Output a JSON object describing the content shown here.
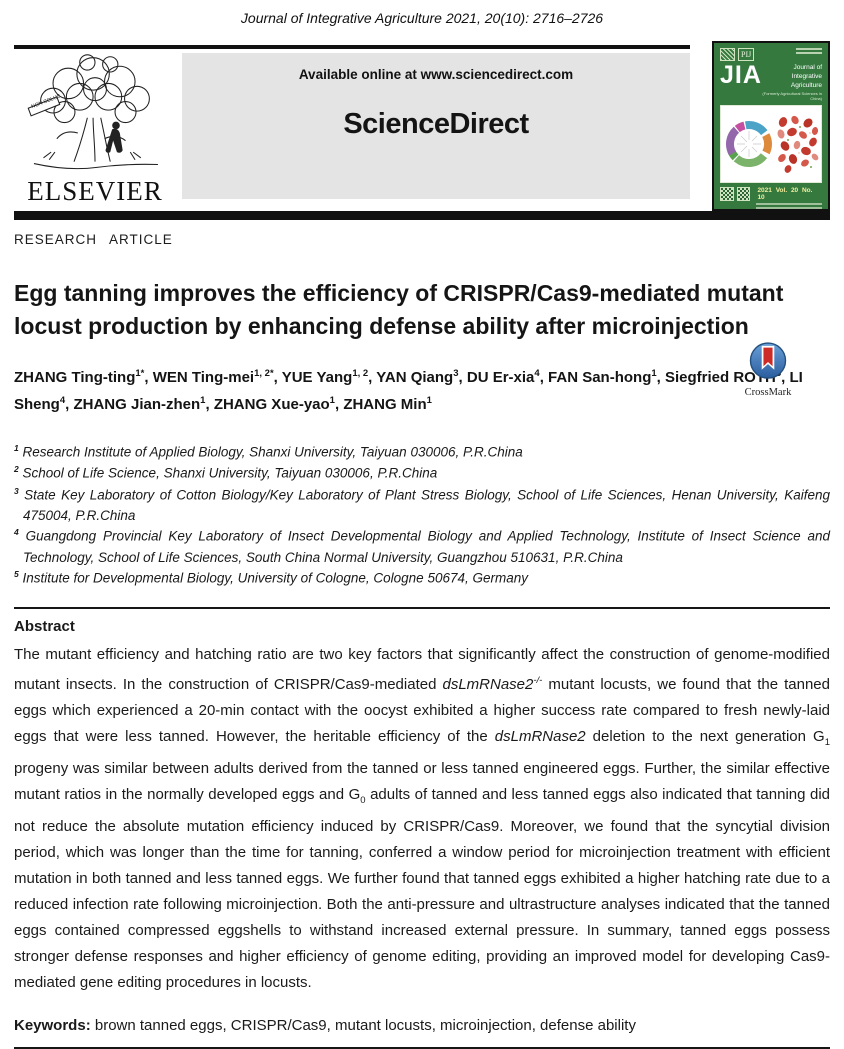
{
  "citation": "Journal of Integrative Agriculture  2021, 20(10): 2716–2726",
  "banner": {
    "available_online": "Available online at www.sciencedirect.com",
    "sciencedirect": "ScienceDirect",
    "elsevier": "ELSEVIER",
    "motto": "NON SOLUS"
  },
  "cover": {
    "abbrev": "JIA",
    "emblem": "PIJ",
    "name1": "Journal of",
    "name2": "Integrative Agriculture",
    "subtitle": "(Formerly Agricultural Sciences in China)",
    "issue": "2021   Vol. 20   No. 10",
    "bg_color": "#35793f"
  },
  "article": {
    "category": "RESEARCH ARTICLE",
    "title": "Egg tanning improves the efficiency of CRISPR/Cas9-mediated mutant locust production by enhancing defense ability after microinjection"
  },
  "crossmark": {
    "label": "CrossMark"
  },
  "authors": {
    "list": [
      {
        "name": "ZHANG Ting-ting",
        "sup": "1*"
      },
      {
        "name": "WEN Ting-mei",
        "sup": "1, 2*"
      },
      {
        "name": "YUE Yang",
        "sup": "1, 2"
      },
      {
        "name": "YAN Qiang",
        "sup": "3"
      },
      {
        "name": "DU Er-xia",
        "sup": "4"
      },
      {
        "name": "FAN San-hong",
        "sup": "1"
      },
      {
        "name": "Siegfried ROTH",
        "sup": "5"
      },
      {
        "name": "LI Sheng",
        "sup": "4"
      },
      {
        "name": "ZHANG Jian-zhen",
        "sup": "1"
      },
      {
        "name": "ZHANG Xue-yao",
        "sup": "1"
      },
      {
        "name": "ZHANG Min",
        "sup": "1"
      }
    ]
  },
  "affiliations": [
    {
      "sup": "1",
      "text": "Research Institute of Applied Biology, Shanxi University, Taiyuan 030006, P.R.China"
    },
    {
      "sup": "2",
      "text": "School of Life Science, Shanxi University, Taiyuan 030006, P.R.China"
    },
    {
      "sup": "3",
      "text": "State Key Laboratory of Cotton Biology/Key Laboratory of Plant Stress Biology, School of Life Sciences, Henan University, Kaifeng 475004, P.R.China"
    },
    {
      "sup": "4",
      "text": "Guangdong Provincial Key Laboratory of Insect Developmental Biology and Applied Technology, Institute of Insect Science and Technology, School of Life Sciences, South China Normal University, Guangzhou 510631, P.R.China"
    },
    {
      "sup": "5",
      "text": "Institute for Developmental Biology, University of Cologne, Cologne 50674, Germany"
    }
  ],
  "abstract": {
    "heading": "Abstract",
    "segments": [
      {
        "t": "The mutant efficiency and hatching ratio are two key factors that significantly affect the construction of genome-modified mutant insects.  In the construction of CRISPR/Cas9-mediated ",
        "style": ""
      },
      {
        "t": "dsLmRNase2",
        "style": "i"
      },
      {
        "t": "-/-",
        "style": "isup"
      },
      {
        "t": " mutant locusts, we found that the tanned eggs which experienced a 20-min contact with the oocyst exhibited a higher success rate compared to fresh newly-laid eggs that were less tanned.  However, the heritable efficiency of the ",
        "style": ""
      },
      {
        "t": "dsLmRNase2",
        "style": "i"
      },
      {
        "t": " deletion to the next generation G",
        "style": ""
      },
      {
        "t": "1",
        "style": "sub"
      },
      {
        "t": " progeny was similar between adults derived from the tanned or less tanned engineered eggs.  Further, the similar effective mutant ratios in the normally developed eggs and G",
        "style": ""
      },
      {
        "t": "0",
        "style": "sub"
      },
      {
        "t": " adults of tanned and less tanned eggs also indicated that tanning did not reduce the absolute mutation efficiency induced by CRISPR/Cas9.  Moreover, we found that the syncytial division period, which was longer than the time for tanning, conferred a window period for microinjection treatment with efficient mutation in both tanned and less tanned eggs.  We further found that tanned eggs exhibited a higher hatching rate due to a reduced infection rate following microinjection.  Both the anti-pressure and ultrastructure analyses indicated that the tanned eggs contained compressed eggshells to withstand increased external pressure.  In summary, tanned eggs possess stronger defense responses and higher efficiency of genome editing, providing an improved model for developing Cas9-mediated gene editing procedures in locusts.",
        "style": ""
      }
    ]
  },
  "keywords": {
    "label": "Keywords: ",
    "text": "brown tanned eggs, CRISPR/Cas9, mutant locusts, microinjection, defense ability"
  }
}
